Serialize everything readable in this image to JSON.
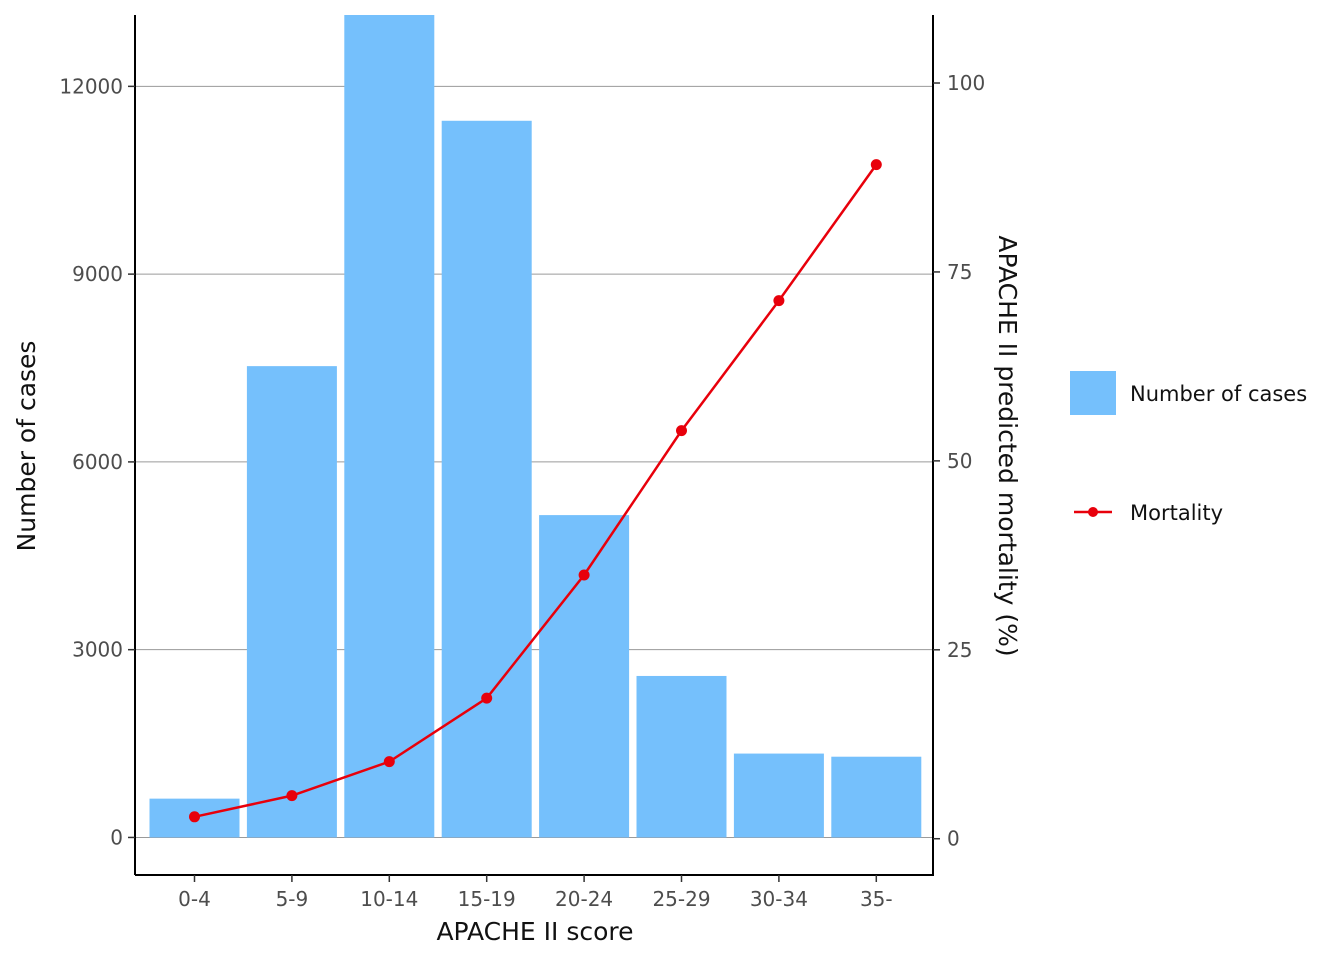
{
  "chart_data": {
    "type": "bar",
    "categories": [
      "0-4",
      "5-9",
      "10-14",
      "15-19",
      "20-24",
      "25-29",
      "30-34",
      "35-"
    ],
    "series": [
      {
        "name": "Number of cases",
        "type": "bar",
        "axis": "left",
        "color": "#75C0FC",
        "values": [
          620,
          7530,
          13140,
          11450,
          5150,
          2580,
          1340,
          1290
        ]
      },
      {
        "name": "Mortality",
        "type": "line",
        "axis": "right",
        "color": "#E8000B",
        "values": [
          2.9,
          5.7,
          10.2,
          18.6,
          34.9,
          54.0,
          71.2,
          89.2
        ]
      }
    ],
    "xlabel": "APACHE II score",
    "ylabel": "Number of cases",
    "y2label": "APACHE II predicted mortality (%)",
    "ylim": [
      -600,
      13140
    ],
    "y_ticks": [
      "0",
      "3000",
      "6000",
      "9000",
      "12000"
    ],
    "y2lim": [
      -4.8,
      109.0
    ],
    "y2_ticks": [
      "0",
      "25",
      "50",
      "75",
      "100"
    ],
    "grid": true,
    "legend_position": "right",
    "legend": [
      "Number of cases",
      "Mortality"
    ]
  }
}
